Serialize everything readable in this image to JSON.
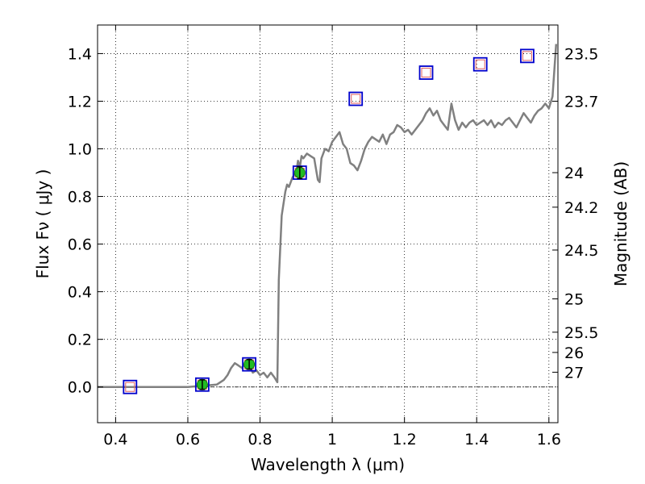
{
  "chart_data": {
    "type": "line",
    "xlabel": "Wavelength  λ (μm)",
    "ylabel": "Flux  Fν  ( μJy )",
    "y2label": "Magnitude (AB)",
    "xlim": [
      0.35,
      1.625
    ],
    "ylim": [
      -0.15,
      1.52
    ],
    "x_ticks": [
      0.4,
      0.6,
      0.8,
      1.0,
      1.2,
      1.4,
      1.6
    ],
    "x_tick_labels": [
      "0.4",
      "0.6",
      "0.8",
      "1",
      "1.2",
      "1.4",
      "1.6"
    ],
    "y_ticks": [
      0.0,
      0.2,
      0.4,
      0.6,
      0.8,
      1.0,
      1.2,
      1.4
    ],
    "y_tick_labels": [
      "0.0",
      "0.2",
      "0.4",
      "0.6",
      "0.8",
      "1.0",
      "1.2",
      "1.4"
    ],
    "right_ticks": [
      {
        "label": "23.5",
        "flux": 1.4
      },
      {
        "label": "23.7",
        "flux": 1.2
      },
      {
        "label": "24",
        "flux": 0.9
      },
      {
        "label": "24.2",
        "flux": 0.755
      },
      {
        "label": "24.5",
        "flux": 0.575
      },
      {
        "label": "25",
        "flux": 0.37
      },
      {
        "label": "25.5",
        "flux": 0.23
      },
      {
        "label": "26",
        "flux": 0.145
      },
      {
        "label": "27",
        "flux": 0.062
      }
    ],
    "grid": true,
    "zero_line": 0.0,
    "colors": {
      "model": "#808080",
      "measured_point": "#22bb22",
      "model_photometry_box": "#0000cc",
      "inner_box": "#e06060"
    },
    "series": [
      {
        "kind": "model_spectrum",
        "x": [
          0.35,
          0.5,
          0.6,
          0.68,
          0.7,
          0.71,
          0.72,
          0.73,
          0.74,
          0.75,
          0.76,
          0.77,
          0.78,
          0.79,
          0.8,
          0.81,
          0.82,
          0.83,
          0.84,
          0.848,
          0.852,
          0.86,
          0.87,
          0.875,
          0.88,
          0.89,
          0.9,
          0.905,
          0.91,
          0.915,
          0.92,
          0.93,
          0.94,
          0.95,
          0.96,
          0.965,
          0.97,
          0.98,
          0.99,
          1.0,
          1.01,
          1.02,
          1.03,
          1.04,
          1.05,
          1.06,
          1.07,
          1.08,
          1.09,
          1.1,
          1.11,
          1.12,
          1.13,
          1.14,
          1.15,
          1.16,
          1.17,
          1.18,
          1.19,
          1.2,
          1.21,
          1.22,
          1.23,
          1.24,
          1.25,
          1.26,
          1.27,
          1.28,
          1.29,
          1.3,
          1.31,
          1.32,
          1.33,
          1.34,
          1.35,
          1.36,
          1.37,
          1.38,
          1.39,
          1.4,
          1.41,
          1.42,
          1.43,
          1.44,
          1.45,
          1.46,
          1.47,
          1.48,
          1.49,
          1.5,
          1.51,
          1.52,
          1.53,
          1.54,
          1.55,
          1.56,
          1.57,
          1.58,
          1.59,
          1.6,
          1.61,
          1.62
        ],
        "y": [
          0.0,
          0.0,
          0.0,
          0.01,
          0.03,
          0.05,
          0.08,
          0.1,
          0.09,
          0.08,
          0.1,
          0.09,
          0.06,
          0.07,
          0.05,
          0.06,
          0.04,
          0.06,
          0.04,
          0.02,
          0.45,
          0.72,
          0.82,
          0.85,
          0.84,
          0.88,
          0.9,
          0.95,
          0.92,
          0.97,
          0.96,
          0.98,
          0.97,
          0.96,
          0.87,
          0.86,
          0.96,
          1.0,
          0.99,
          1.03,
          1.05,
          1.07,
          1.02,
          1.0,
          0.94,
          0.93,
          0.91,
          0.95,
          1.0,
          1.03,
          1.05,
          1.04,
          1.03,
          1.06,
          1.02,
          1.06,
          1.07,
          1.1,
          1.09,
          1.07,
          1.08,
          1.06,
          1.08,
          1.1,
          1.12,
          1.15,
          1.17,
          1.14,
          1.16,
          1.12,
          1.1,
          1.08,
          1.19,
          1.12,
          1.08,
          1.11,
          1.09,
          1.11,
          1.12,
          1.1,
          1.11,
          1.12,
          1.1,
          1.12,
          1.09,
          1.11,
          1.1,
          1.12,
          1.13,
          1.11,
          1.09,
          1.12,
          1.15,
          1.13,
          1.11,
          1.14,
          1.16,
          1.17,
          1.19,
          1.17,
          1.22,
          1.44
        ]
      },
      {
        "kind": "measured_photometry",
        "x": [
          0.64,
          0.77,
          0.91
        ],
        "y": [
          0.01,
          0.095,
          0.9
        ],
        "yerr": [
          0.02,
          0.02,
          0.025
        ]
      },
      {
        "kind": "model_photometry",
        "x": [
          0.44,
          0.64,
          0.77,
          0.91,
          1.065,
          1.26,
          1.41,
          1.54
        ],
        "y": [
          0.0,
          0.01,
          0.095,
          0.9,
          1.21,
          1.32,
          1.355,
          1.39
        ]
      }
    ]
  }
}
